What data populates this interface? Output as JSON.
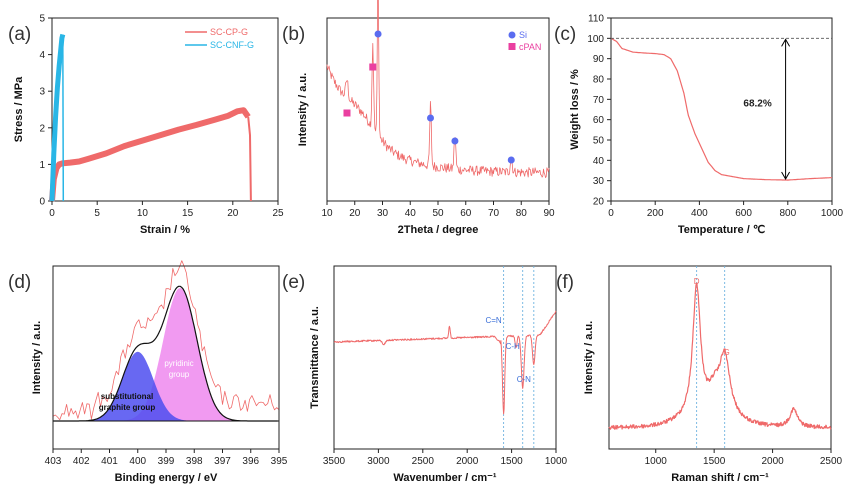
{
  "colors": {
    "curve": "#ef6a6a",
    "cyan": "#29b6e6",
    "si_marker": "#5a6cf0",
    "cpan_marker": "#ea3fa0",
    "blue_fill": "#4d4df0",
    "pink_fill": "#ee88ee",
    "ref_line": "#6fb3e0"
  },
  "chart_data": [
    {
      "panel": "(a)",
      "type": "line",
      "xlabel": "Strain / %",
      "ylabel": "Stress / MPa",
      "xlim": [
        0,
        25
      ],
      "ylim": [
        0,
        5
      ],
      "xticks": [
        "0",
        "5",
        "10",
        "15",
        "20",
        "25"
      ],
      "yticks": [
        "0",
        "1",
        "2",
        "3",
        "4",
        "5"
      ],
      "series": [
        {
          "name": "SC-CP-G",
          "x": [
            0,
            0.2,
            0.5,
            0.8,
            1.2,
            2,
            3,
            4,
            6,
            8,
            10,
            12,
            14,
            16,
            18,
            19.5,
            20.5,
            21.2,
            21.7,
            21.9,
            22
          ],
          "y": [
            0,
            0.6,
            0.9,
            1.0,
            1.03,
            1.05,
            1.08,
            1.15,
            1.3,
            1.5,
            1.65,
            1.8,
            1.95,
            2.08,
            2.22,
            2.33,
            2.45,
            2.48,
            2.3,
            1.8,
            0
          ]
        },
        {
          "name": "SC-CNF-G",
          "x": [
            0,
            0.2,
            0.4,
            0.6,
            0.8,
            1.0,
            1.1,
            1.2,
            1.25
          ],
          "y": [
            0,
            1.3,
            2.3,
            3.1,
            3.7,
            4.2,
            4.45,
            4.55,
            0
          ]
        }
      ]
    },
    {
      "panel": "(b)",
      "type": "line",
      "xlabel": "2Theta / degree",
      "ylabel": "Intensity / a.u.",
      "xlim": [
        10,
        90
      ],
      "xticks": [
        "10",
        "20",
        "30",
        "40",
        "50",
        "60",
        "70",
        "80",
        "90"
      ],
      "markers": [
        {
          "name": "Si",
          "x": [
            28.4,
            47.3,
            56.1,
            76.4
          ]
        },
        {
          "name": "cPAN",
          "x": [
            17.2,
            26.5
          ]
        }
      ]
    },
    {
      "panel": "(c)",
      "type": "line",
      "xlabel": "Temperature / ℃",
      "ylabel": "Weight loss / %",
      "xlim": [
        0,
        1000
      ],
      "ylim": [
        20,
        110
      ],
      "xticks": [
        "0",
        "200",
        "400",
        "600",
        "800",
        "1000"
      ],
      "yticks": [
        "20",
        "30",
        "40",
        "50",
        "60",
        "70",
        "80",
        "90",
        "100",
        "110"
      ],
      "x": [
        0,
        25,
        50,
        100,
        150,
        200,
        240,
        270,
        300,
        330,
        350,
        380,
        410,
        440,
        470,
        500,
        550,
        600,
        700,
        800,
        900,
        1000
      ],
      "y": [
        100,
        98.5,
        95,
        93.2,
        92.8,
        92.5,
        92,
        90,
        84,
        73,
        62,
        53,
        46,
        39,
        35,
        33,
        32,
        31,
        30.5,
        30.3,
        31,
        31.5
      ],
      "annotation": "68.2%"
    },
    {
      "panel": "(d)",
      "type": "area",
      "xlabel": "Binding energy / eV",
      "ylabel": "Intensity / a.u.",
      "xlim": [
        403,
        395
      ],
      "xticks": [
        "403",
        "402",
        "401",
        "400",
        "399",
        "398",
        "397",
        "396",
        "395"
      ],
      "peaks": [
        {
          "name": "substitutional graphite group",
          "center": 400.0,
          "height": 0.52,
          "sigma": 0.55
        },
        {
          "name": "pyridinic group",
          "center": 398.5,
          "height": 1.0,
          "sigma": 0.6
        }
      ],
      "labels": {
        "pink_line1": "pyridinic",
        "pink_line2": "group",
        "blue_line1": "substitutional",
        "blue_line2": "graphite group"
      }
    },
    {
      "panel": "(e)",
      "type": "line",
      "xlabel": "Wavenumber / cm⁻¹",
      "ylabel": "Transmittance / a.u.",
      "xlim": [
        3500,
        1000
      ],
      "xticks": [
        "3500",
        "3000",
        "2500",
        "2000",
        "1500",
        "1000"
      ],
      "ref_lines": [
        1590,
        1375,
        1250
      ],
      "band_labels": [
        "C=N",
        "C-H",
        "C-N"
      ]
    },
    {
      "panel": "(f)",
      "type": "line",
      "xlabel": "Raman shift / cm⁻¹",
      "ylabel": "Intensity / a.u.",
      "xlim": [
        600,
        2500
      ],
      "xticks": [
        "1000",
        "1500",
        "2000",
        "2500"
      ],
      "ref_lines": [
        1350,
        1590
      ],
      "band_labels": [
        "D",
        "G"
      ]
    }
  ]
}
